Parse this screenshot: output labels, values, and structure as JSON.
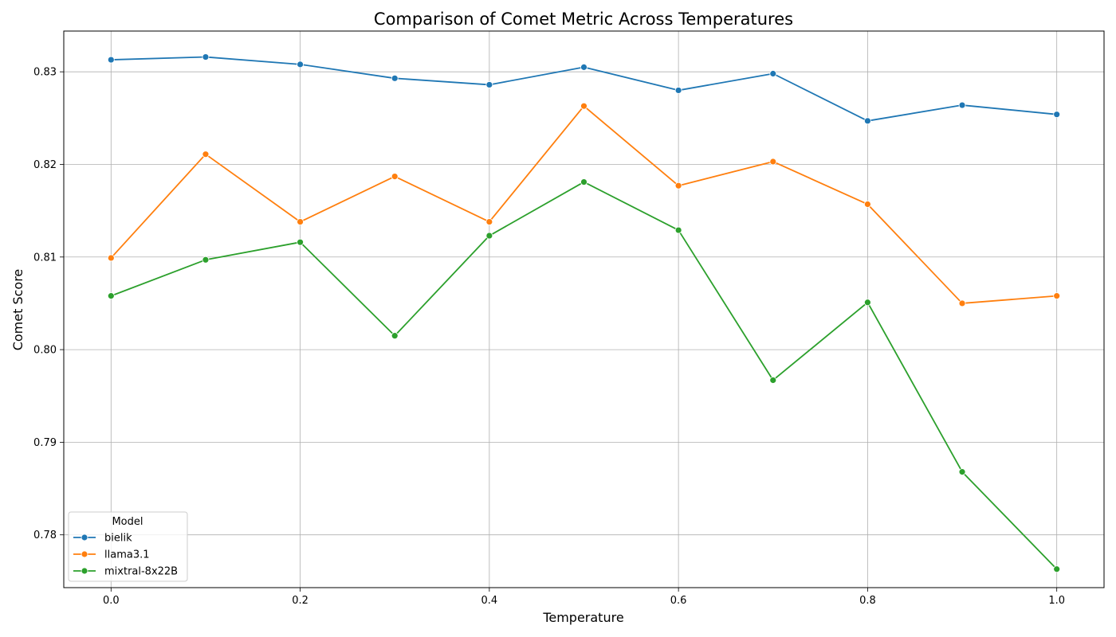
{
  "chart_data": {
    "type": "line",
    "title": "Comparison of Comet Metric Across Temperatures",
    "xlabel": "Temperature",
    "ylabel": "Comet Score",
    "xlim": [
      -0.05,
      1.05
    ],
    "ylim": [
      0.7743,
      0.8344
    ],
    "xticks": [
      0.0,
      0.2,
      0.4,
      0.6,
      0.8,
      1.0
    ],
    "xtick_labels": [
      "0.0",
      "0.2",
      "0.4",
      "0.6",
      "0.8",
      "1.0"
    ],
    "yticks": [
      0.78,
      0.79,
      0.8,
      0.81,
      0.82,
      0.83
    ],
    "ytick_labels": [
      "0.78",
      "0.79",
      "0.80",
      "0.81",
      "0.82",
      "0.83"
    ],
    "grid": true,
    "x": [
      0.0,
      0.1,
      0.2,
      0.3,
      0.4,
      0.5,
      0.6,
      0.7,
      0.8,
      0.9,
      1.0
    ],
    "legend": {
      "title": "Model",
      "position": "lower-left"
    },
    "series": [
      {
        "name": "bielik",
        "color": "#1f77b4",
        "values": [
          0.8313,
          0.8316,
          0.8308,
          0.8293,
          0.8286,
          0.8305,
          0.828,
          0.8298,
          0.8247,
          0.8264,
          0.8254
        ]
      },
      {
        "name": "llama3.1",
        "color": "#ff7f0e",
        "values": [
          0.8099,
          0.8211,
          0.8138,
          0.8187,
          0.8138,
          0.8263,
          0.8177,
          0.8203,
          0.8157,
          0.805,
          0.8058
        ]
      },
      {
        "name": "mixtral-8x22B",
        "color": "#2ca02c",
        "values": [
          0.8058,
          0.8097,
          0.8116,
          0.8015,
          0.8123,
          0.8181,
          0.8129,
          0.7967,
          0.8051,
          0.7868,
          0.7763
        ]
      }
    ]
  }
}
